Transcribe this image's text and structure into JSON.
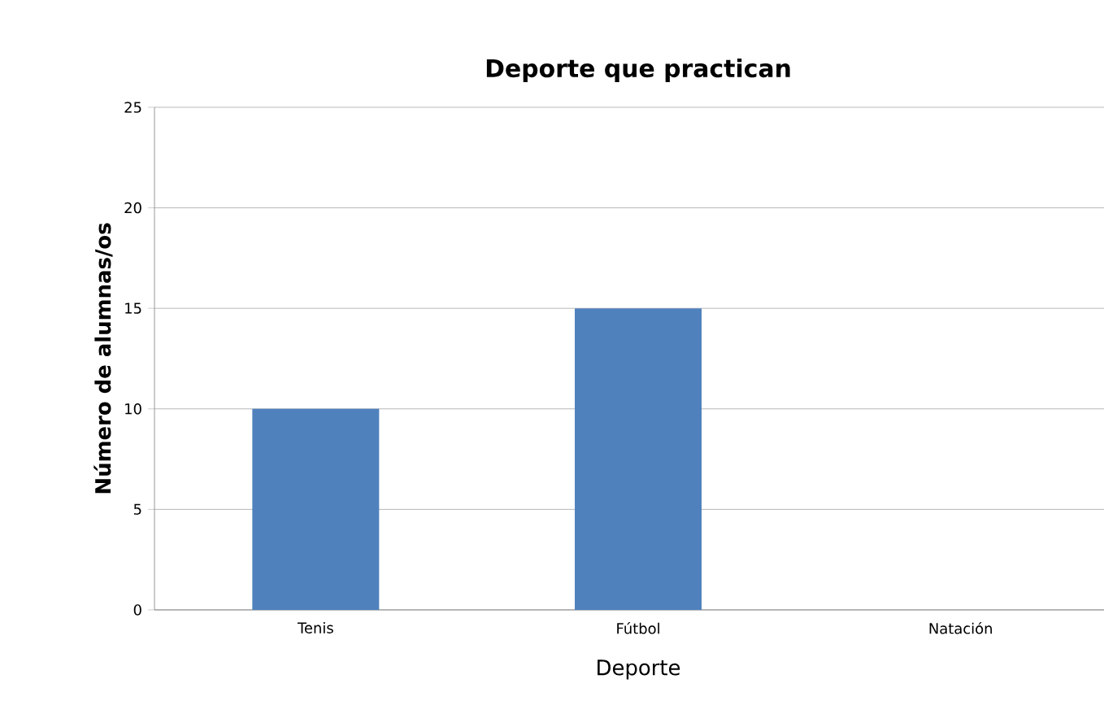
{
  "chart_data": {
    "type": "bar",
    "title": "Deporte que practican",
    "xlabel": "Deporte",
    "ylabel": "Número de alumnas/os",
    "categories": [
      "Tenis",
      "Fútbol",
      "Natación"
    ],
    "values": [
      10,
      15,
      0
    ],
    "color": "#4f81bd",
    "ylim": [
      0,
      25
    ],
    "yticks": [
      0,
      5,
      10,
      15,
      20,
      25
    ],
    "grid": "y"
  }
}
